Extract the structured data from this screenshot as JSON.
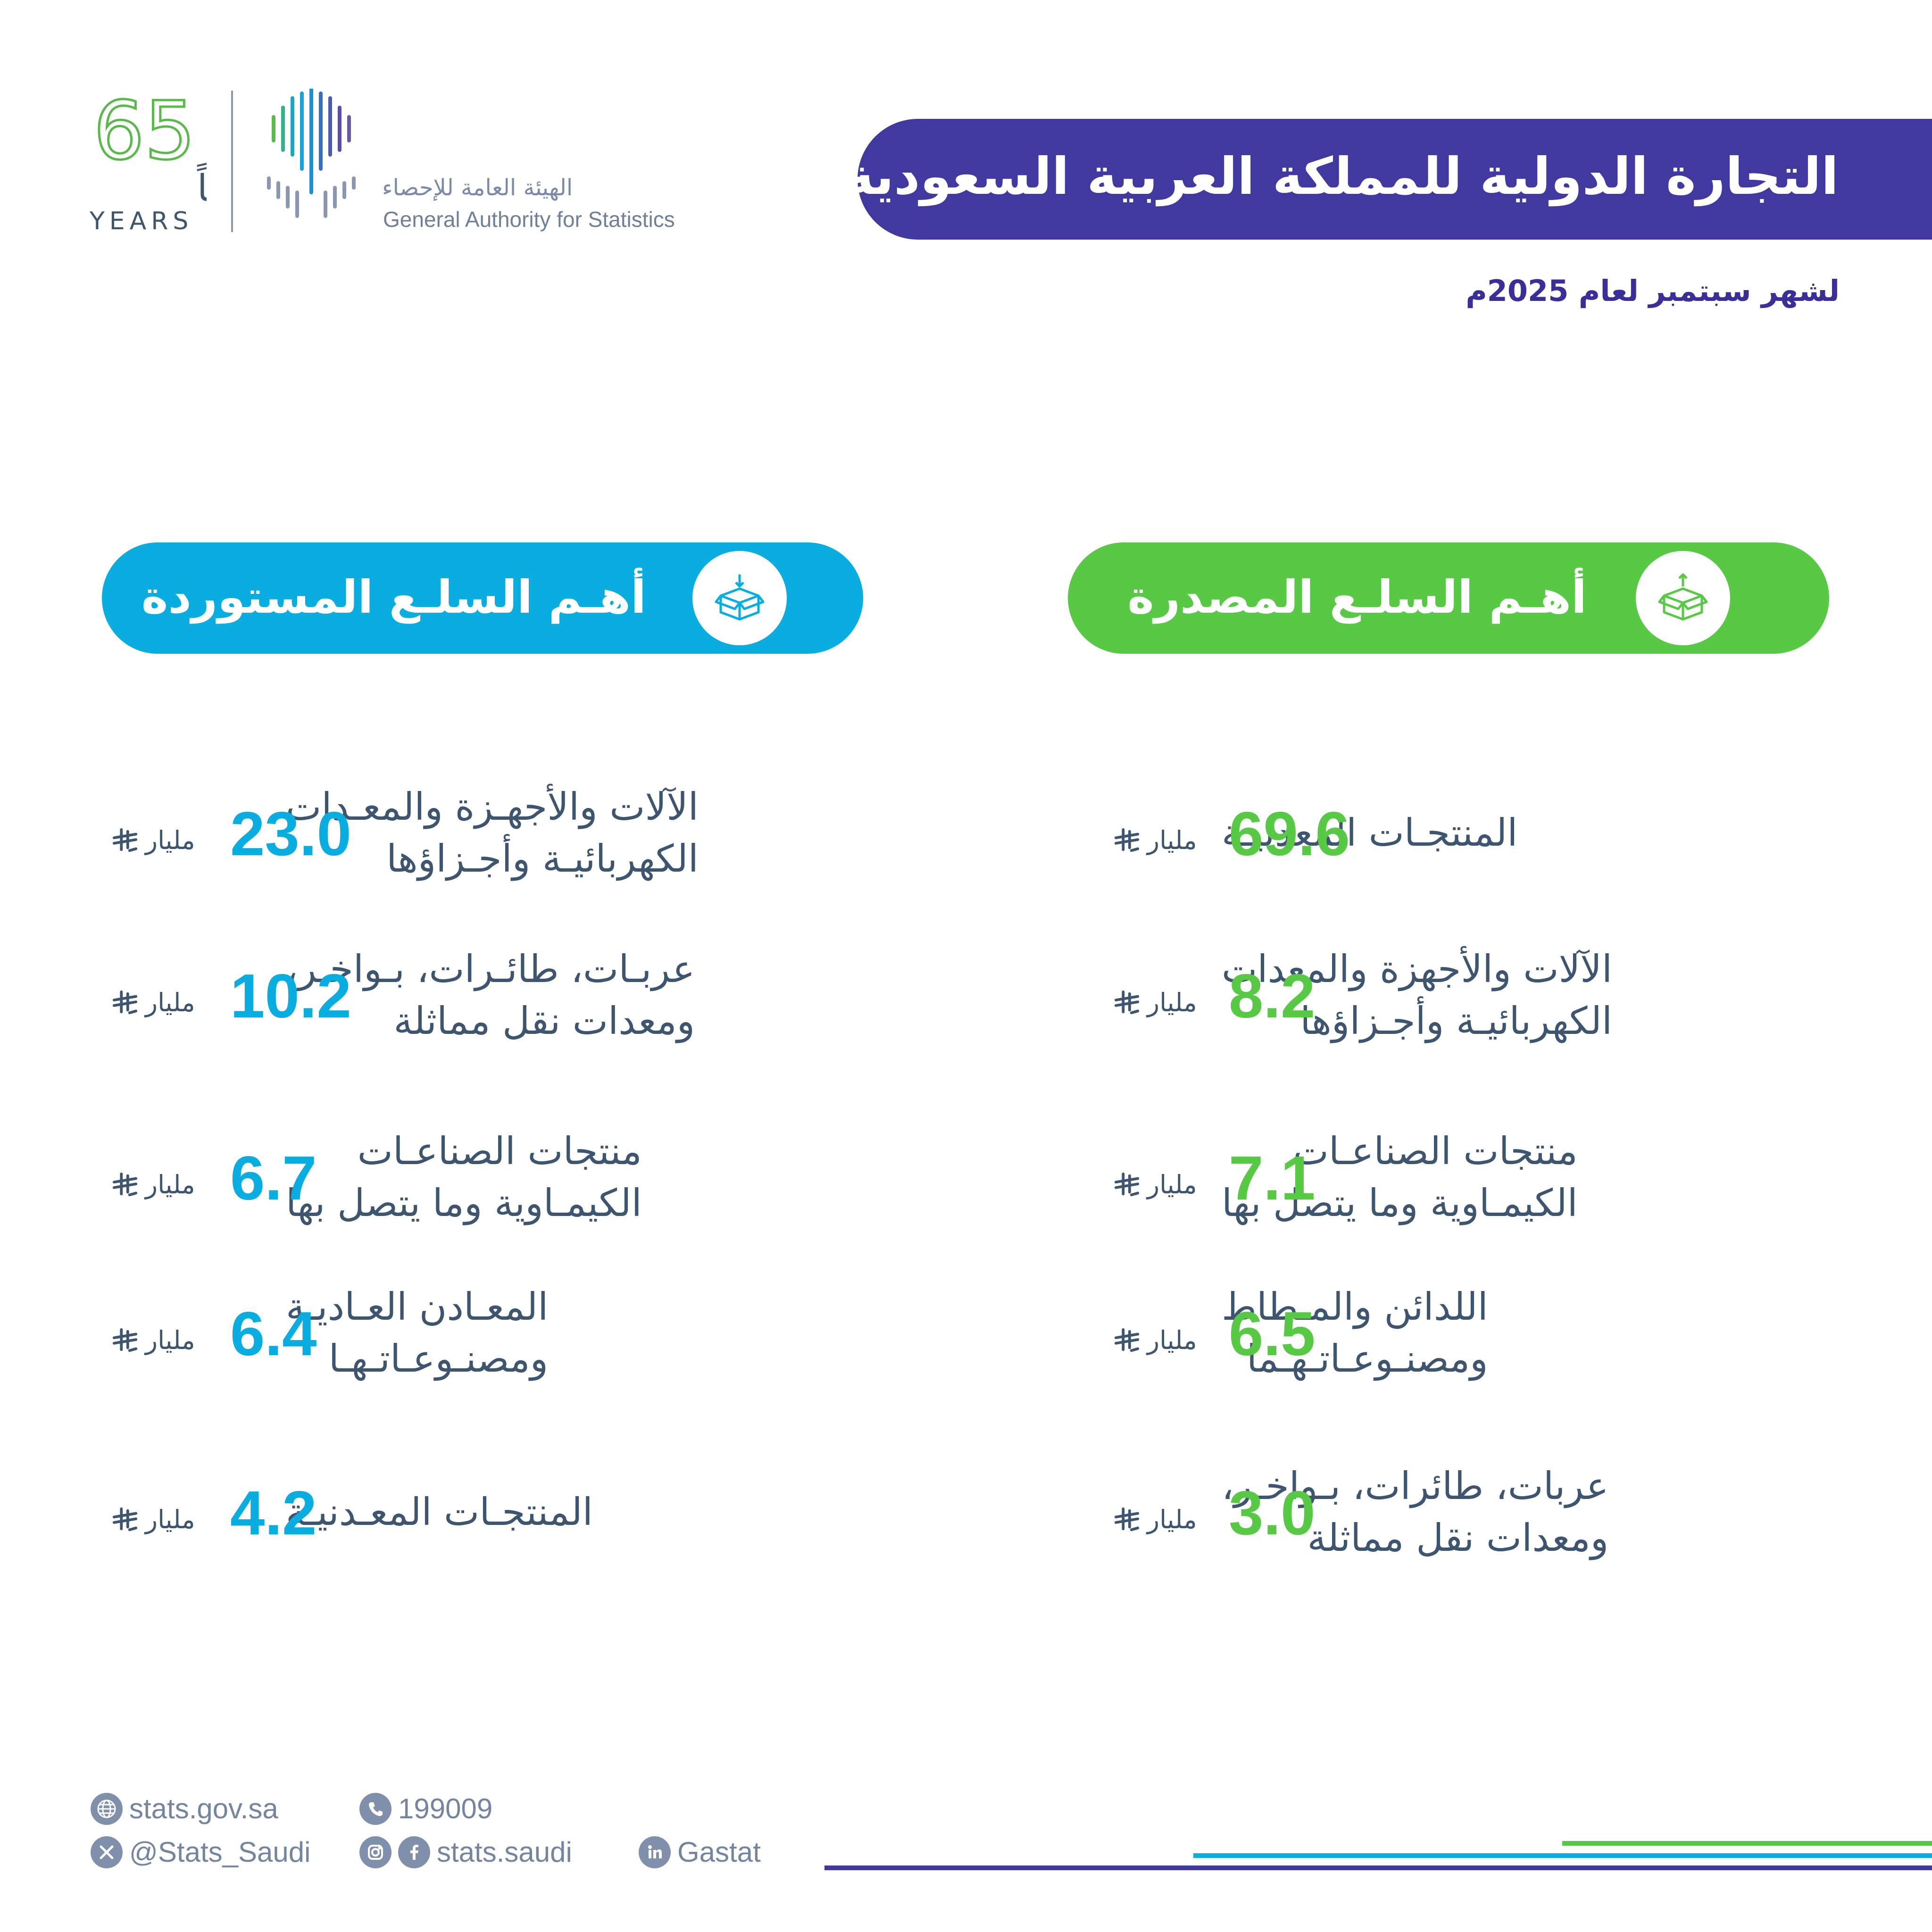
{
  "header": {
    "title": "التجارة الدولية للمملكة العربية السعودية",
    "subtitle": "لشهر سبتمبر لعام 2025م"
  },
  "logos": {
    "anniversary_number": "65",
    "anniversary_ar": "عــامـاً",
    "anniversary_en": "YEARS",
    "authority_ar": "الهيئة العامة للإحصاء",
    "authority_en": "General Authority for Statistics"
  },
  "exports": {
    "title": "أهـم السلـع المصدرة",
    "icon": "box-export-icon",
    "items": [
      {
        "label_lines": [
          "المنتجـات المعدنيـة"
        ],
        "value": "69.6",
        "unit": "مليار"
      },
      {
        "label_lines": [
          "الآلات والأجهزة والمعدات",
          "الكهربائيـة وأجـزاؤها"
        ],
        "value": "8.2",
        "unit": "مليار"
      },
      {
        "label_lines": [
          "منتجات الصناعـات",
          "الكيمـاوية وما يتصل بها"
        ],
        "value": "7.1",
        "unit": "مليار"
      },
      {
        "label_lines": [
          "اللدائن والمـطاط",
          "ومصنـوعـاتـهـما"
        ],
        "value": "6.5",
        "unit": "مليار"
      },
      {
        "label_lines": [
          "عربات، طائرات، بـواخـر،",
          "ومعدات نقل مماثلة"
        ],
        "value": "3.0",
        "unit": "مليار"
      }
    ]
  },
  "imports": {
    "title": "أهـم السلـع المستوردة",
    "icon": "box-import-icon",
    "items": [
      {
        "label_lines": [
          "الآلات والأجهـزة والمعـدات",
          "الكهربائيـة وأجـزاؤها"
        ],
        "value": "23.0",
        "unit": "مليار"
      },
      {
        "label_lines": [
          "عربـات، طائـرات، بـواخـر،",
          "ومعدات نقل مماثلة"
        ],
        "value": "10.2",
        "unit": "مليار"
      },
      {
        "label_lines": [
          "منتجات الصناعـات",
          "الكيمـاوية وما يتصل بها"
        ],
        "value": "6.7",
        "unit": "مليار"
      },
      {
        "label_lines": [
          "المعـادن العـاديـة",
          "ومصنـوعـاتـهـا"
        ],
        "value": "6.4",
        "unit": "مليار"
      },
      {
        "label_lines": [
          "المنتجـات المعـدنيـة"
        ],
        "value": "4.2",
        "unit": "مليار"
      }
    ]
  },
  "footer": {
    "website": "stats.gov.sa",
    "phone": "199009",
    "x_handle": "@Stats_Saudi",
    "social_handle": "stats.saudi",
    "linkedin": "Gastat"
  },
  "colors": {
    "banner": "#4139a0",
    "exports_accent": "#58c944",
    "imports_accent": "#09ade0",
    "body_text": "#3e5570"
  }
}
